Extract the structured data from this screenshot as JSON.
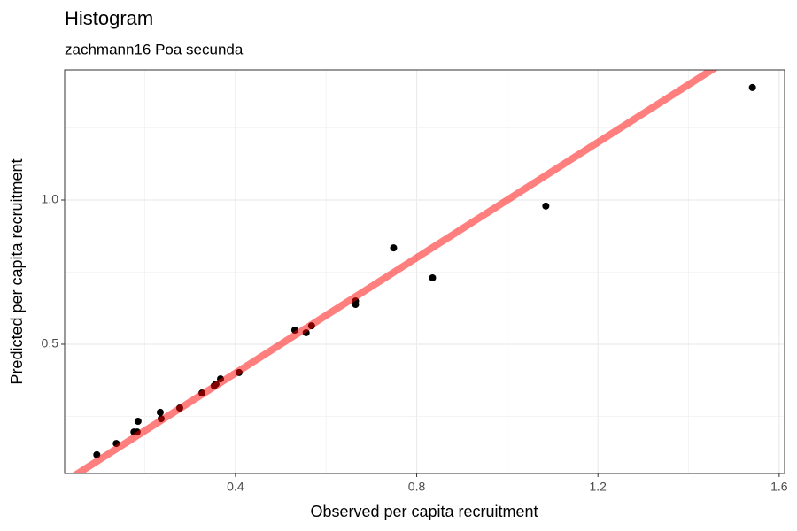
{
  "chart_data": {
    "type": "scatter",
    "title": "Histogram",
    "subtitle": "zachmann16 Poa secunda",
    "x_label": "Observed per capita recruitment",
    "y_label": "Predicted per capita recruitment",
    "x": [
      0.094,
      0.137,
      0.176,
      0.183,
      0.185,
      0.236,
      0.234,
      0.277,
      0.326,
      0.353,
      0.357,
      0.367,
      0.408,
      0.531,
      0.556,
      0.568,
      0.665,
      0.665,
      0.749,
      0.835,
      1.085,
      1.541
    ],
    "values": [
      0.117,
      0.156,
      0.196,
      0.196,
      0.233,
      0.242,
      0.264,
      0.279,
      0.331,
      0.356,
      0.362,
      0.38,
      0.402,
      0.549,
      0.54,
      0.564,
      0.65,
      0.638,
      0.834,
      0.73,
      0.979,
      1.39
    ],
    "color": "#000000",
    "reference_line": {
      "type": "identity",
      "color": "#FF0000",
      "opacity": 0.5
    },
    "xlim": [
      0.023,
      1.612
    ],
    "ylim": [
      0.052,
      1.451
    ],
    "xticks": [
      {
        "value": 0.4,
        "label": "0.4"
      },
      {
        "value": 0.8,
        "label": "0.8"
      },
      {
        "value": 1.2,
        "label": "1.2"
      },
      {
        "value": 1.6,
        "label": "1.6"
      }
    ],
    "yticks": [
      {
        "value": 0.5,
        "label": "0.5"
      },
      {
        "value": 1.0,
        "label": "1.0"
      }
    ],
    "grid": true
  }
}
